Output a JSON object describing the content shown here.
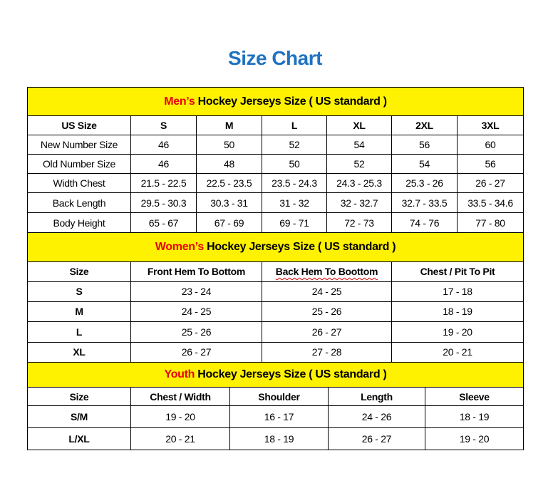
{
  "title": "Size Chart",
  "colors": {
    "title": "#1f73c0",
    "section_bg": "#fff200",
    "section_accent": "#e8000b"
  },
  "men": {
    "prefix": "Men’s",
    "heading": " Hockey Jerseys Size ( US standard )",
    "headers": [
      "US Size",
      "S",
      "M",
      "L",
      "XL",
      "2XL",
      "3XL"
    ],
    "rows": [
      [
        "New Number Size",
        "46",
        "50",
        "52",
        "54",
        "56",
        "60"
      ],
      [
        "Old Number Size",
        "46",
        "48",
        "50",
        "52",
        "54",
        "56"
      ],
      [
        "Width Chest",
        "21.5 - 22.5",
        "22.5 - 23.5",
        "23.5 - 24.3",
        "24.3 - 25.3",
        "25.3 - 26",
        "26 - 27"
      ],
      [
        "Back Length",
        "29.5 - 30.3",
        "30.3 - 31",
        "31 - 32",
        "32 - 32.7",
        "32.7 - 33.5",
        "33.5 - 34.6"
      ],
      [
        "Body Height",
        "65 - 67",
        "67 - 69",
        "69 - 71",
        "72 - 73",
        "74 - 76",
        "77 - 80"
      ]
    ]
  },
  "women": {
    "prefix": "Women’s",
    "heading": " Hockey Jerseys Size ( US standard )",
    "headers": [
      "Size",
      "Front Hem To Bottom",
      "Back Hem To Boottom",
      "Chest / Pit To Pit"
    ],
    "rows": [
      [
        "S",
        "23 - 24",
        "24 - 25",
        "17 - 18"
      ],
      [
        "M",
        "24 - 25",
        "25 - 26",
        "18 - 19"
      ],
      [
        "L",
        "25 - 26",
        "26 - 27",
        "19 - 20"
      ],
      [
        "XL",
        "26 - 27",
        "27 - 28",
        "20 - 21"
      ]
    ]
  },
  "youth": {
    "prefix": "Youth",
    "heading": " Hockey Jerseys Size ( US standard )",
    "headers": [
      "Size",
      "Chest / Width",
      "Shoulder",
      "Length",
      "Sleeve"
    ],
    "rows": [
      [
        "S/M",
        "19 - 20",
        "16 - 17",
        "24 - 26",
        "18 - 19"
      ],
      [
        "L/XL",
        "20 - 21",
        "18 - 19",
        "26 - 27",
        "19 - 20"
      ]
    ]
  }
}
